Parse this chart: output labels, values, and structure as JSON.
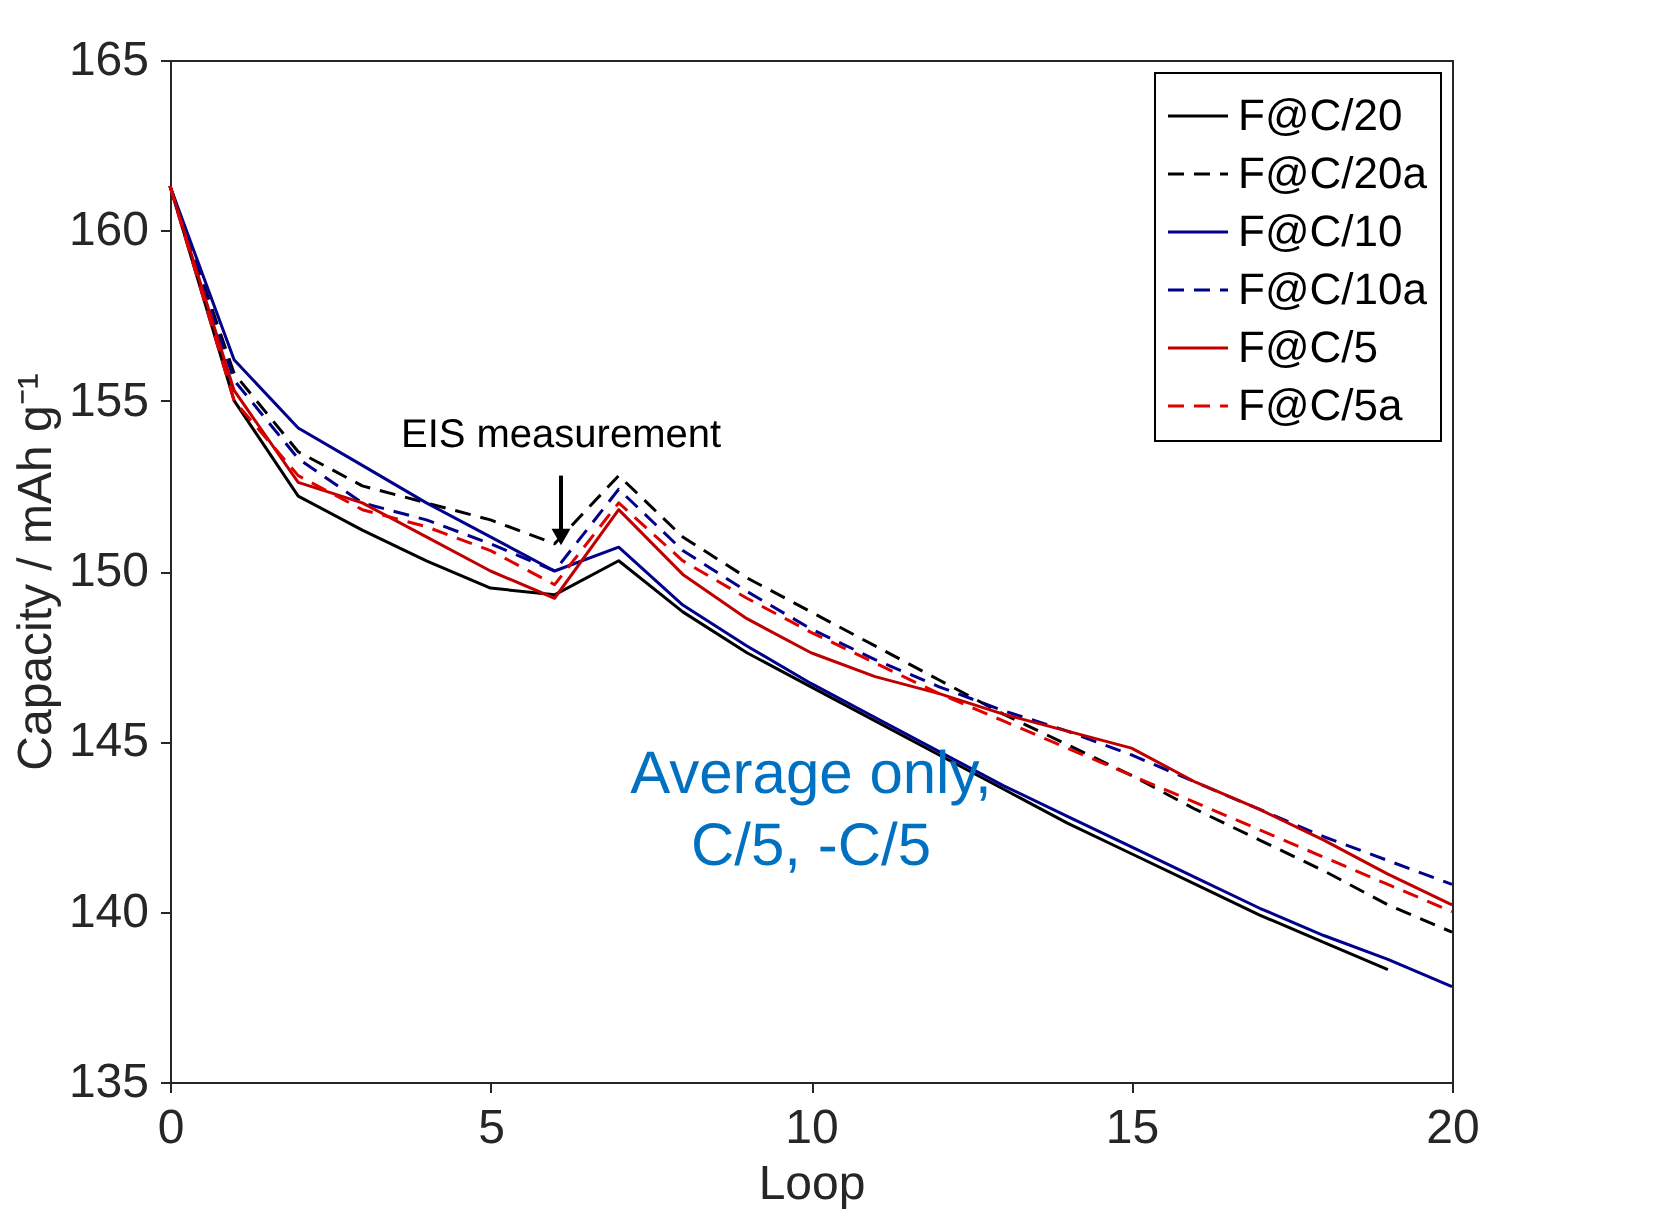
{
  "chart_data": {
    "type": "line",
    "xlabel": "Loop",
    "ylabel": "Capacity / mAh g⁻¹",
    "x": [
      0,
      1,
      2,
      3,
      4,
      5,
      6,
      7,
      8,
      9,
      10,
      11,
      12,
      13,
      14,
      15,
      16,
      17,
      18,
      19,
      20
    ],
    "xlim": [
      0,
      20
    ],
    "xticks": [
      0,
      5,
      10,
      15,
      20
    ],
    "ylim": [
      135,
      165
    ],
    "yticks": [
      135,
      140,
      145,
      150,
      155,
      160,
      165
    ],
    "grid": false,
    "legend": "top right",
    "marker": "none",
    "series": [
      {
        "name": "F@C/20",
        "color": "#000000",
        "line_style": "solid",
        "values": [
          161.3,
          155,
          152.2,
          151.2,
          150.3,
          149.5,
          149.3,
          150.3,
          148.8,
          147.6,
          146.6,
          145.6,
          144.6,
          143.6,
          142.6,
          141.7,
          140.8,
          139.9,
          139.1,
          138.3,
          null
        ]
      },
      {
        "name": "F@C/20a",
        "color": "#000000",
        "line_style": "dashed",
        "values": [
          161.3,
          155.8,
          153.5,
          152.5,
          152,
          151.5,
          150.8,
          152.8,
          151,
          149.8,
          148.8,
          147.8,
          146.8,
          145.8,
          144.9,
          144,
          143,
          142.1,
          141.2,
          140.2,
          139.4
        ]
      },
      {
        "name": "F@C/10",
        "color": "#00008b",
        "line_style": "solid",
        "values": [
          161.3,
          156.2,
          154.2,
          153.1,
          152,
          151,
          150,
          150.7,
          149,
          147.8,
          146.7,
          145.7,
          144.7,
          143.7,
          142.8,
          141.9,
          141,
          140.1,
          139.3,
          138.6,
          137.8
        ]
      },
      {
        "name": "F@C/10a",
        "color": "#00008b",
        "line_style": "dashed",
        "values": [
          161.3,
          155.6,
          153.3,
          152,
          151.5,
          150.8,
          150,
          152.4,
          150.6,
          149.4,
          148.3,
          147.4,
          146.6,
          145.9,
          145.3,
          144.6,
          143.8,
          143,
          142.2,
          141.5,
          140.8
        ]
      },
      {
        "name": "F@C/5",
        "color": "#c00000",
        "line_style": "solid",
        "values": [
          161.3,
          155.3,
          152.6,
          152,
          151,
          150,
          149.2,
          151.8,
          149.9,
          148.6,
          147.6,
          146.9,
          146.4,
          145.8,
          145.3,
          144.8,
          143.8,
          143,
          142.1,
          141.1,
          140.2
        ]
      },
      {
        "name": "F@C/5a",
        "color": "#e00000",
        "line_style": "dashed",
        "values": [
          161.3,
          155,
          152.8,
          151.8,
          151.3,
          150.6,
          149.6,
          152,
          150.3,
          149.2,
          148.2,
          147.3,
          146.4,
          145.6,
          144.8,
          144,
          143.2,
          142.4,
          141.6,
          140.8,
          140
        ]
      }
    ],
    "annotations": [
      {
        "text": "EIS measurement",
        "x": 6.1,
        "y": 151
      },
      "Average only,\nC/5, -C/5"
    ]
  }
}
